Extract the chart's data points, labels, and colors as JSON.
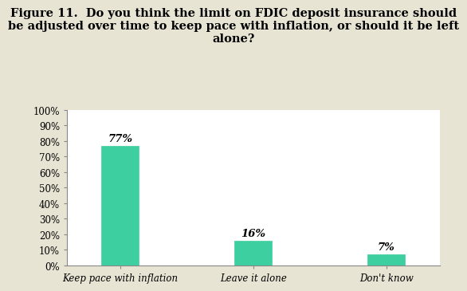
{
  "title_line1": "Figure 11.  Do you think the limit on FDIC deposit insurance should",
  "title_line2": "be adjusted over time to keep pace with inflation, or should it be left",
  "title_line3": "alone?",
  "categories": [
    "Keep pace with inflation",
    "Leave it alone",
    "Don't know"
  ],
  "values": [
    77,
    16,
    7
  ],
  "labels": [
    "77%",
    "16%",
    "7%"
  ],
  "bar_color": "#3dcfa0",
  "bar_edge_color": "#3dcfa0",
  "fig_background_color": "#e8e4d4",
  "plot_background_color": "#ffffff",
  "ylim": [
    0,
    100
  ],
  "yticks": [
    0,
    10,
    20,
    30,
    40,
    50,
    60,
    70,
    80,
    90,
    100
  ],
  "ytick_labels": [
    "0%",
    "10%",
    "20%",
    "30%",
    "40%",
    "50%",
    "60%",
    "70%",
    "80%",
    "90%",
    "100%"
  ],
  "title_fontsize": 10.5,
  "tick_fontsize": 8.5,
  "label_fontsize": 9.5,
  "bar_width": 0.28,
  "x_positions": [
    0.5,
    1.5,
    2.5
  ]
}
